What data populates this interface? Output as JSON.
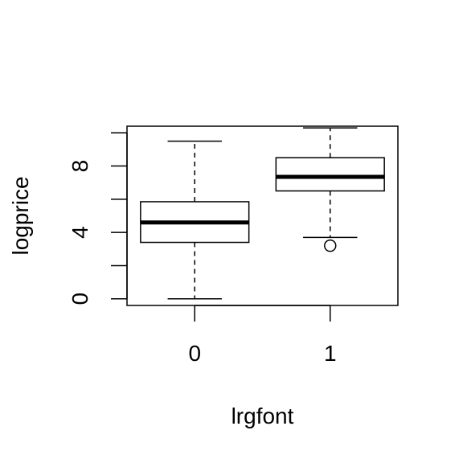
{
  "chart_data": {
    "type": "box",
    "title": "",
    "xlabel": "lrgfont",
    "ylabel": "logprice",
    "ylim": [
      -0.4,
      10.4
    ],
    "y_ticks": [
      0,
      2,
      4,
      6,
      8,
      10
    ],
    "y_tick_labels": [
      "0",
      "",
      "4",
      "",
      "8",
      ""
    ],
    "categories": [
      "0",
      "1"
    ],
    "boxes": [
      {
        "category": "0",
        "whisker_low": 0.0,
        "q1": 3.4,
        "median": 4.6,
        "q3": 5.85,
        "whisker_high": 9.5,
        "outliers": []
      },
      {
        "category": "1",
        "whisker_low": 3.7,
        "q1": 6.5,
        "median": 7.35,
        "q3": 8.5,
        "whisker_high": 10.3,
        "outliers": [
          3.2
        ]
      }
    ],
    "grid": false,
    "colors": {
      "stroke": "#000000",
      "fill": "#ffffff"
    }
  }
}
